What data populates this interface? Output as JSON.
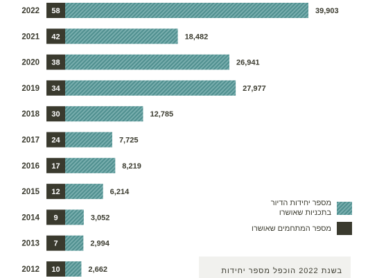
{
  "chart_data": {
    "type": "bar",
    "orientation": "horizontal",
    "categories": [
      "2022",
      "2021",
      "2020",
      "2019",
      "2018",
      "2017",
      "2016",
      "2015",
      "2014",
      "2013",
      "2012"
    ],
    "series": [
      {
        "name": "מספר יחידות הדיור בתכניות שאושרו",
        "values": [
          39903,
          18482,
          26941,
          27977,
          12785,
          7725,
          8219,
          6214,
          3052,
          2994,
          2662
        ]
      },
      {
        "name": "מספר המתחמים שאושרו",
        "values": [
          58,
          42,
          38,
          34,
          30,
          24,
          17,
          12,
          9,
          7,
          10
        ]
      }
    ],
    "value_labels": [
      "39,903",
      "18,482",
      "26,941",
      "27,977",
      "12,785",
      "7,725",
      "8,219",
      "6,214",
      "3,052",
      "2,994",
      "2,662"
    ],
    "colors": {
      "units": "#4f8f8f",
      "units_stripe": "#79aeae",
      "complexes": "#3a3a2e",
      "text": "#3a3a2e"
    }
  },
  "legend": {
    "units_lines": [
      "מספר יחידות הדיור",
      "בתכניות שאושרו"
    ],
    "complexes_label": "מספר המתחמים שאושרו"
  },
  "note": {
    "text": "בשנת 2022 הוכפל מספר יחידות"
  }
}
